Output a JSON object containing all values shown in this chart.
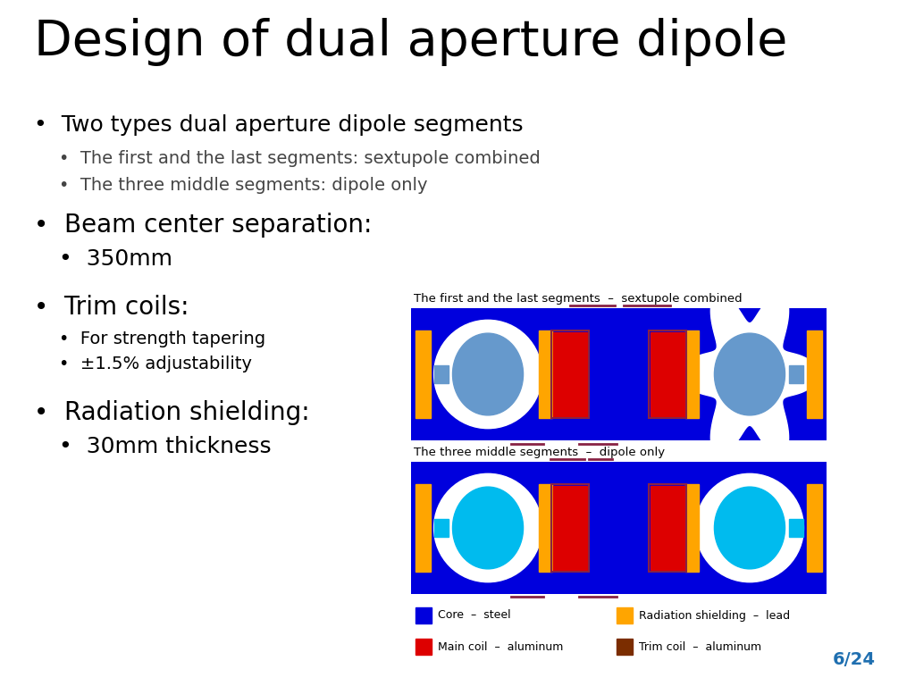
{
  "title": "Design of dual aperture dipole",
  "bullet1": "Two types dual aperture dipole segments",
  "sub1a": "The first and the last segments: sextupole combined",
  "sub1b": "The three middle segments: dipole only",
  "bullet2": "Beam center separation:",
  "sub2a": "350mm",
  "bullet3": "Trim coils:",
  "sub3a": "For strength tapering",
  "sub3b": "±1.5% adjustability",
  "bullet4": "Radiation shielding:",
  "sub4a": "30mm thickness",
  "diagram_label1": "The first and the last segments  –  sextupole combined",
  "diagram_label2": "The three middle segments  –  dipole only",
  "legend_items": [
    {
      "label": "Core  –  steel",
      "color": "#0000CC"
    },
    {
      "label": "Main coil  –  aluminum",
      "color": "#CC0000"
    },
    {
      "label": "Radiation shielding  –  lead",
      "color": "#FFA500"
    },
    {
      "label": "Trim coil  –  aluminum",
      "color": "#7B2D00"
    }
  ],
  "slide_num": "6/24",
  "bg_color": "#FFFFFF",
  "blue": "#0000DD",
  "red": "#DD0000",
  "orange": "#FFA500",
  "brown": "#7B2D00",
  "light_blue": "#6699CC",
  "cyan": "#00BBEE",
  "purple": "#882244",
  "white": "#FFFFFF"
}
